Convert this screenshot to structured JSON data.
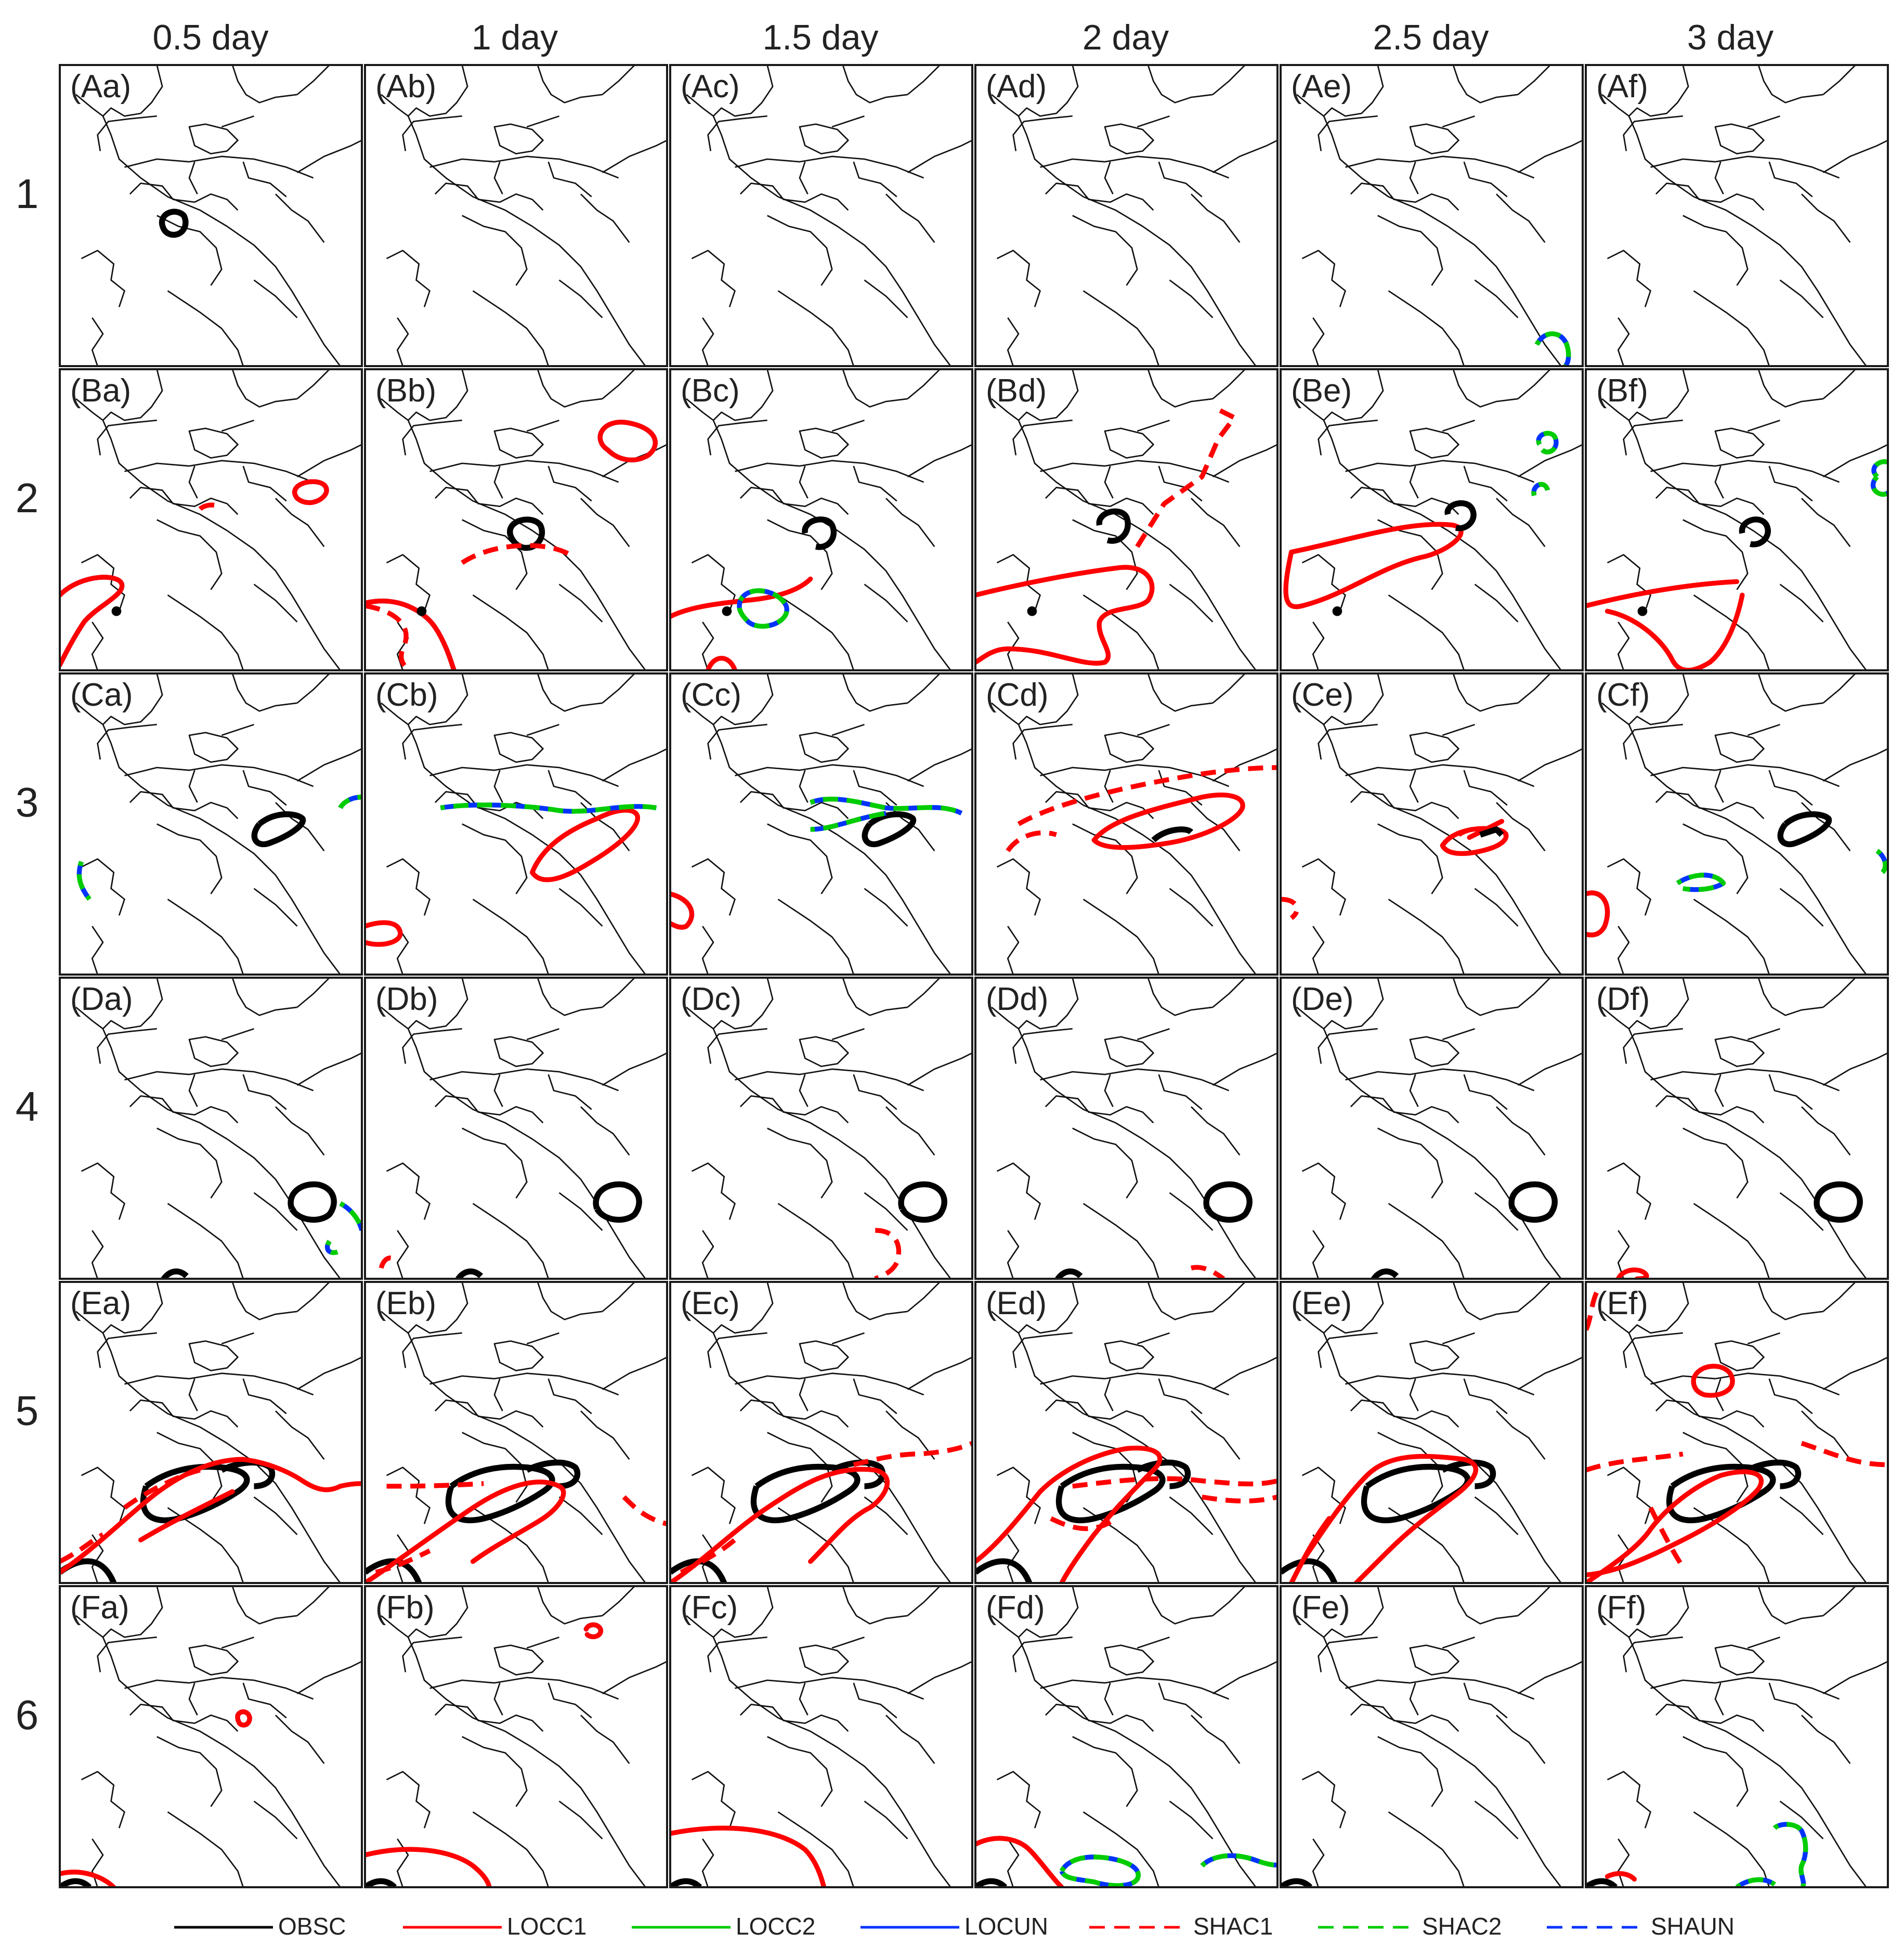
{
  "columns": [
    "0.5 day",
    "1 day",
    "1.5 day",
    "2 day",
    "2.5 day",
    "3 day"
  ],
  "rows": [
    "1",
    "2",
    "3",
    "4",
    "5",
    "6"
  ],
  "panels": [
    [
      "(Aa)",
      "(Ab)",
      "(Ac)",
      "(Ad)",
      "(Ae)",
      "(Af)"
    ],
    [
      "(Ba)",
      "(Bb)",
      "(Bc)",
      "(Bd)",
      "(Be)",
      "(Bf)"
    ],
    [
      "(Ca)",
      "(Cb)",
      "(Cc)",
      "(Cd)",
      "(Ce)",
      "(Cf)"
    ],
    [
      "(Da)",
      "(Db)",
      "(Dc)",
      "(Dd)",
      "(De)",
      "(Df)"
    ],
    [
      "(Ea)",
      "(Eb)",
      "(Ec)",
      "(Ed)",
      "(Ee)",
      "(Ef)"
    ],
    [
      "(Fa)",
      "(Fb)",
      "(Fc)",
      "(Fd)",
      "(Fe)",
      "(Ff)"
    ]
  ],
  "legend": [
    {
      "label": "OBSC",
      "color": "#000000",
      "style": "solid"
    },
    {
      "label": "LOCC1",
      "color": "#ff0000",
      "style": "solid"
    },
    {
      "label": "LOCC2",
      "color": "#00cc00",
      "style": "solid"
    },
    {
      "label": "LOCUN",
      "color": "#0033ff",
      "style": "solid"
    },
    {
      "label": "SHAC1",
      "color": "#ff0000",
      "style": "dashed"
    },
    {
      "label": "SHAC2",
      "color": "#00cc00",
      "style": "dashed"
    },
    {
      "label": "SHAUN",
      "color": "#0033ff",
      "style": "dashed"
    }
  ]
}
